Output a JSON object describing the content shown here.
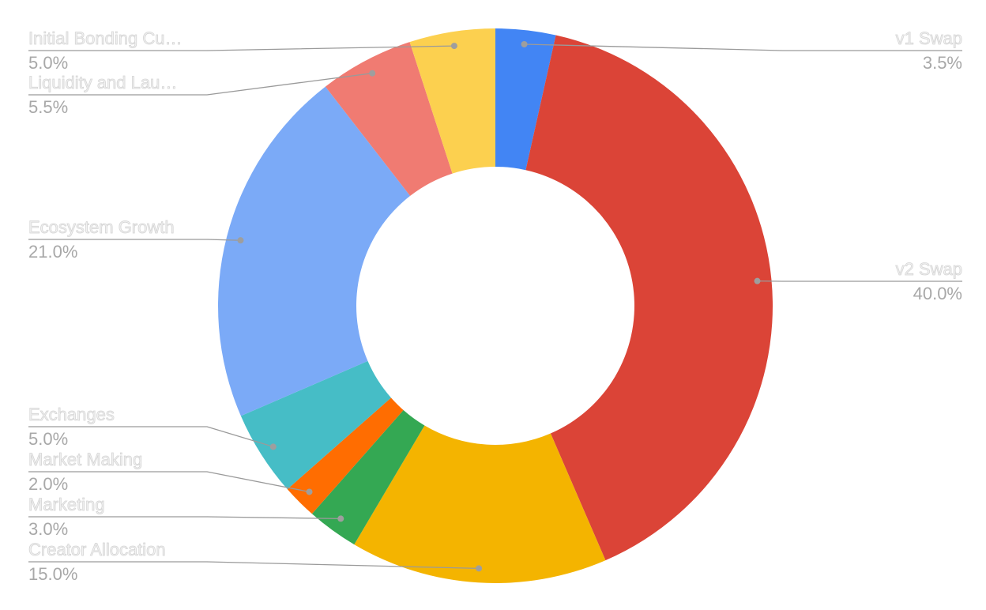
{
  "chart_data": {
    "type": "pie",
    "donut": true,
    "title": "",
    "legend": "labels-outside",
    "slices": [
      {
        "label": "v1 Swap",
        "value": 3.5,
        "pct_label": "3.5%",
        "color": "#4285f4"
      },
      {
        "label": "v2 Swap",
        "value": 40.0,
        "pct_label": "40.0%",
        "color": "#db4437"
      },
      {
        "label": "Creator Allocation",
        "value": 15.0,
        "pct_label": "15.0%",
        "color": "#f4b400"
      },
      {
        "label": "Marketing",
        "value": 3.0,
        "pct_label": "3.0%",
        "color": "#34a853"
      },
      {
        "label": "Market Making",
        "value": 2.0,
        "pct_label": "2.0%",
        "color": "#ff6d01"
      },
      {
        "label": "Exchanges",
        "value": 5.0,
        "pct_label": "5.0%",
        "color": "#46bdc6"
      },
      {
        "label": "Ecosystem Growth",
        "value": 21.0,
        "pct_label": "21.0%",
        "color": "#7baaf7"
      },
      {
        "label": "Liquidity and Lau…",
        "value": 5.5,
        "pct_label": "5.5%",
        "color": "#f07b72"
      },
      {
        "label": "Initial Bonding Cu…",
        "value": 5.0,
        "pct_label": "5.0%",
        "color": "#fcd04f"
      }
    ]
  }
}
